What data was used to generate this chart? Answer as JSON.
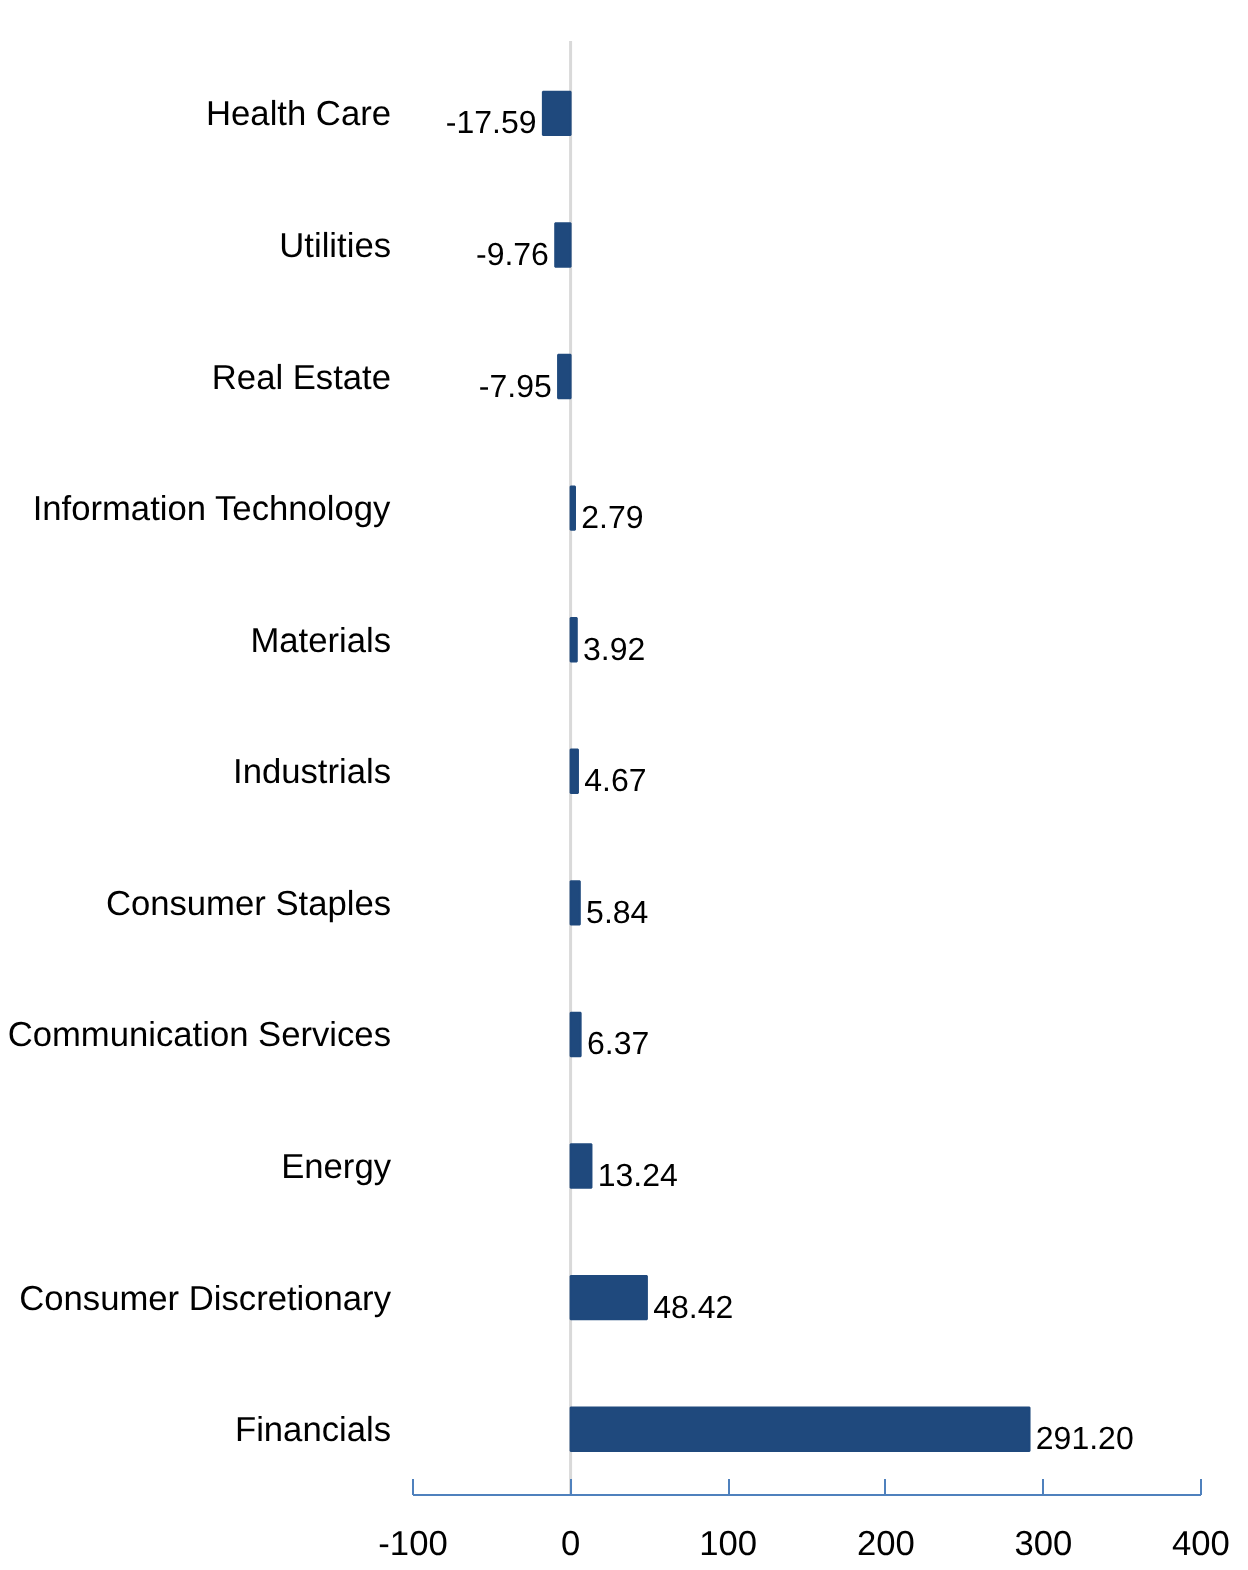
{
  "chart_data": {
    "type": "bar",
    "orientation": "horizontal",
    "categories": [
      "Health Care",
      "Utilities",
      "Real Estate",
      "Information Technology",
      "Materials",
      "Industrials",
      "Consumer Staples",
      "Communication Services",
      "Energy",
      "Consumer Discretionary",
      "Financials"
    ],
    "values": [
      -17.59,
      -9.76,
      -7.95,
      2.79,
      3.92,
      4.67,
      5.84,
      6.37,
      13.24,
      48.42,
      291.2
    ],
    "value_labels": [
      "-17.59",
      "-9.76",
      "-7.95",
      "2.79",
      "3.92",
      "4.67",
      "5.84",
      "6.37",
      "13.24",
      "48.42",
      "291.20"
    ],
    "color": "#1f497d",
    "xlim": [
      -100,
      400
    ],
    "xticks": [
      -100,
      0,
      100,
      200,
      300,
      400
    ],
    "ref_lines": [
      {
        "axis": "x",
        "value": 0,
        "color": "#d9d9d9"
      }
    ],
    "grid": false
  }
}
